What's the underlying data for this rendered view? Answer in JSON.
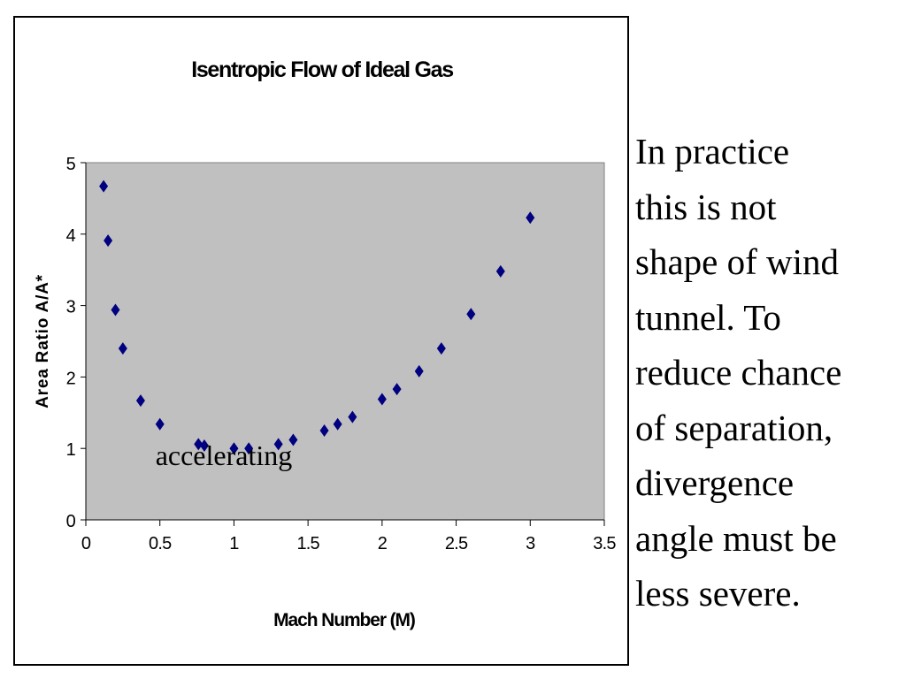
{
  "chart_data": {
    "type": "scatter",
    "title": "Isentropic Flow of Ideal Gas",
    "xlabel": "Mach Number (M)",
    "ylabel": "Area Ratio A/A*",
    "xlim": [
      0,
      3.5
    ],
    "ylim": [
      0,
      5
    ],
    "x_ticks": [
      "0",
      "0.5",
      "1",
      "1.5",
      "2",
      "2.5",
      "3",
      "3.5"
    ],
    "y_ticks": [
      "0",
      "1",
      "2",
      "3",
      "4",
      "5"
    ],
    "grid": false,
    "plot_background": "#c0c0c0",
    "marker": "diamond",
    "marker_color": "#000080",
    "legend": "none",
    "points": [
      {
        "x": 0.12,
        "y": 4.67
      },
      {
        "x": 0.15,
        "y": 3.91
      },
      {
        "x": 0.2,
        "y": 2.94
      },
      {
        "x": 0.25,
        "y": 2.4
      },
      {
        "x": 0.37,
        "y": 1.67
      },
      {
        "x": 0.5,
        "y": 1.34
      },
      {
        "x": 0.76,
        "y": 1.06
      },
      {
        "x": 0.8,
        "y": 1.04
      },
      {
        "x": 1.0,
        "y": 1.0
      },
      {
        "x": 1.1,
        "y": 1.0
      },
      {
        "x": 1.3,
        "y": 1.06
      },
      {
        "x": 1.4,
        "y": 1.12
      },
      {
        "x": 1.61,
        "y": 1.25
      },
      {
        "x": 1.7,
        "y": 1.34
      },
      {
        "x": 1.8,
        "y": 1.44
      },
      {
        "x": 2.0,
        "y": 1.69
      },
      {
        "x": 2.1,
        "y": 1.83
      },
      {
        "x": 2.25,
        "y": 2.08
      },
      {
        "x": 2.4,
        "y": 2.4
      },
      {
        "x": 2.6,
        "y": 2.88
      },
      {
        "x": 2.8,
        "y": 3.48
      },
      {
        "x": 3.0,
        "y": 4.23
      }
    ],
    "annotations": [
      {
        "text": "accelerating",
        "x": 0.47,
        "y": 0.77
      }
    ]
  },
  "side_text": {
    "lines": [
      "In practice",
      "this is not",
      "shape of wind",
      "tunnel. To",
      "reduce chance",
      "of separation,",
      "divergence",
      "angle must be",
      "less severe."
    ]
  }
}
